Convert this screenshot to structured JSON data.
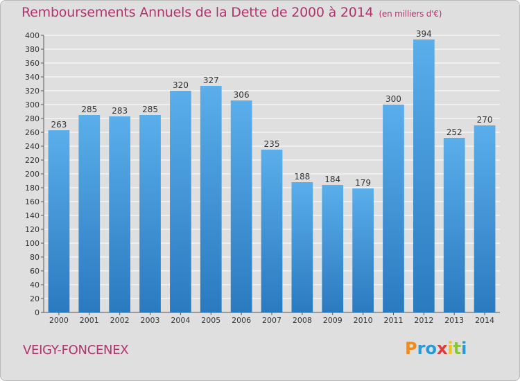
{
  "header": {
    "title": "Remboursements Annuels de la Dette de 2000 à 2014",
    "subtitle": "(en milliers d'€)"
  },
  "footer": {
    "commune": "VEIGY-FONCENEX",
    "logo": [
      "P",
      "r",
      "o",
      "x",
      "i",
      "t",
      "i"
    ]
  },
  "colors": {
    "title": "#b0336e",
    "bar_top": "#5aaeea",
    "bar_bottom": "#2a7ac0",
    "background": "#dfdfdf",
    "logo": [
      "#f08a1f",
      "#2a9ad6",
      "#2a9ad6",
      "#e23a3a",
      "#f0c21a",
      "#8cc63e",
      "#2a9ad6"
    ]
  },
  "chart_data": {
    "type": "bar",
    "title": "Remboursements Annuels de la Dette de 2000 à 2014",
    "subtitle": "(en milliers d'€)",
    "categories": [
      "2000",
      "2001",
      "2002",
      "2003",
      "2004",
      "2005",
      "2006",
      "2007",
      "2008",
      "2009",
      "2010",
      "2011",
      "2012",
      "2013",
      "2014"
    ],
    "values": [
      263,
      285,
      283,
      285,
      320,
      327,
      306,
      235,
      188,
      184,
      179,
      300,
      394,
      252,
      270
    ],
    "ylim": [
      0,
      400
    ],
    "ytick_step": 20,
    "grid": true,
    "legend": "none"
  }
}
